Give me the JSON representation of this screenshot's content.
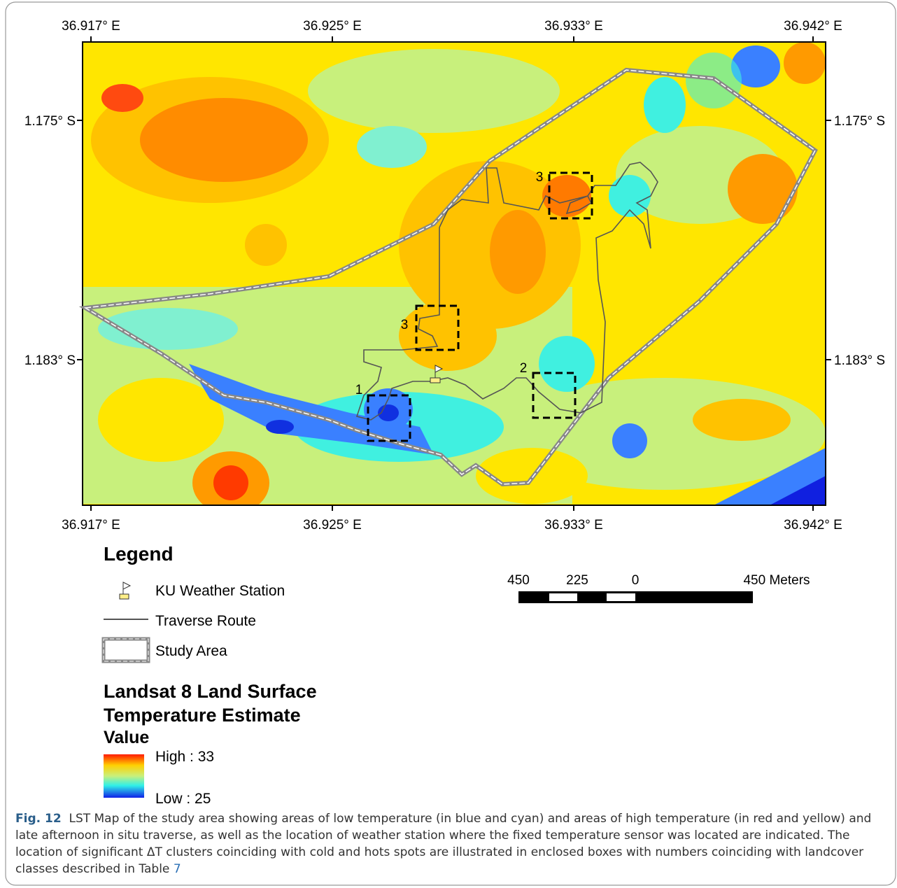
{
  "map": {
    "lon_labels": [
      "36.917° E",
      "36.925° E",
      "36.933° E",
      "36.942° E"
    ],
    "lat_labels": [
      "1.175° S",
      "1.183° S"
    ],
    "boxes": [
      "3",
      "3",
      "2",
      "1"
    ]
  },
  "legend": {
    "title": "Legend",
    "items": [
      "KU Weather Station",
      "Traverse Route",
      "Study Area"
    ],
    "raster_title": "Landsat 8 Land Surface Temperature Estimate",
    "value_heading": "Value",
    "high": "High : 33",
    "low": "Low : 25"
  },
  "scale_bar": {
    "labels": [
      "450",
      "225",
      "0",
      "450 Meters"
    ]
  },
  "caption": {
    "label": "Fig. 12",
    "text": "LST Map of the study area showing areas of low temperature (in blue and cyan) and areas of high temperature (in red and yellow) and late afternoon in situ traverse, as well as the location of weather station where the fixed temperature sensor was located are indicated. The location of significant ΔT clusters coinciding with cold and hots spots are illustrated in enclosed boxes with numbers coinciding with landcover classes described in Table",
    "table_ref": "7"
  }
}
